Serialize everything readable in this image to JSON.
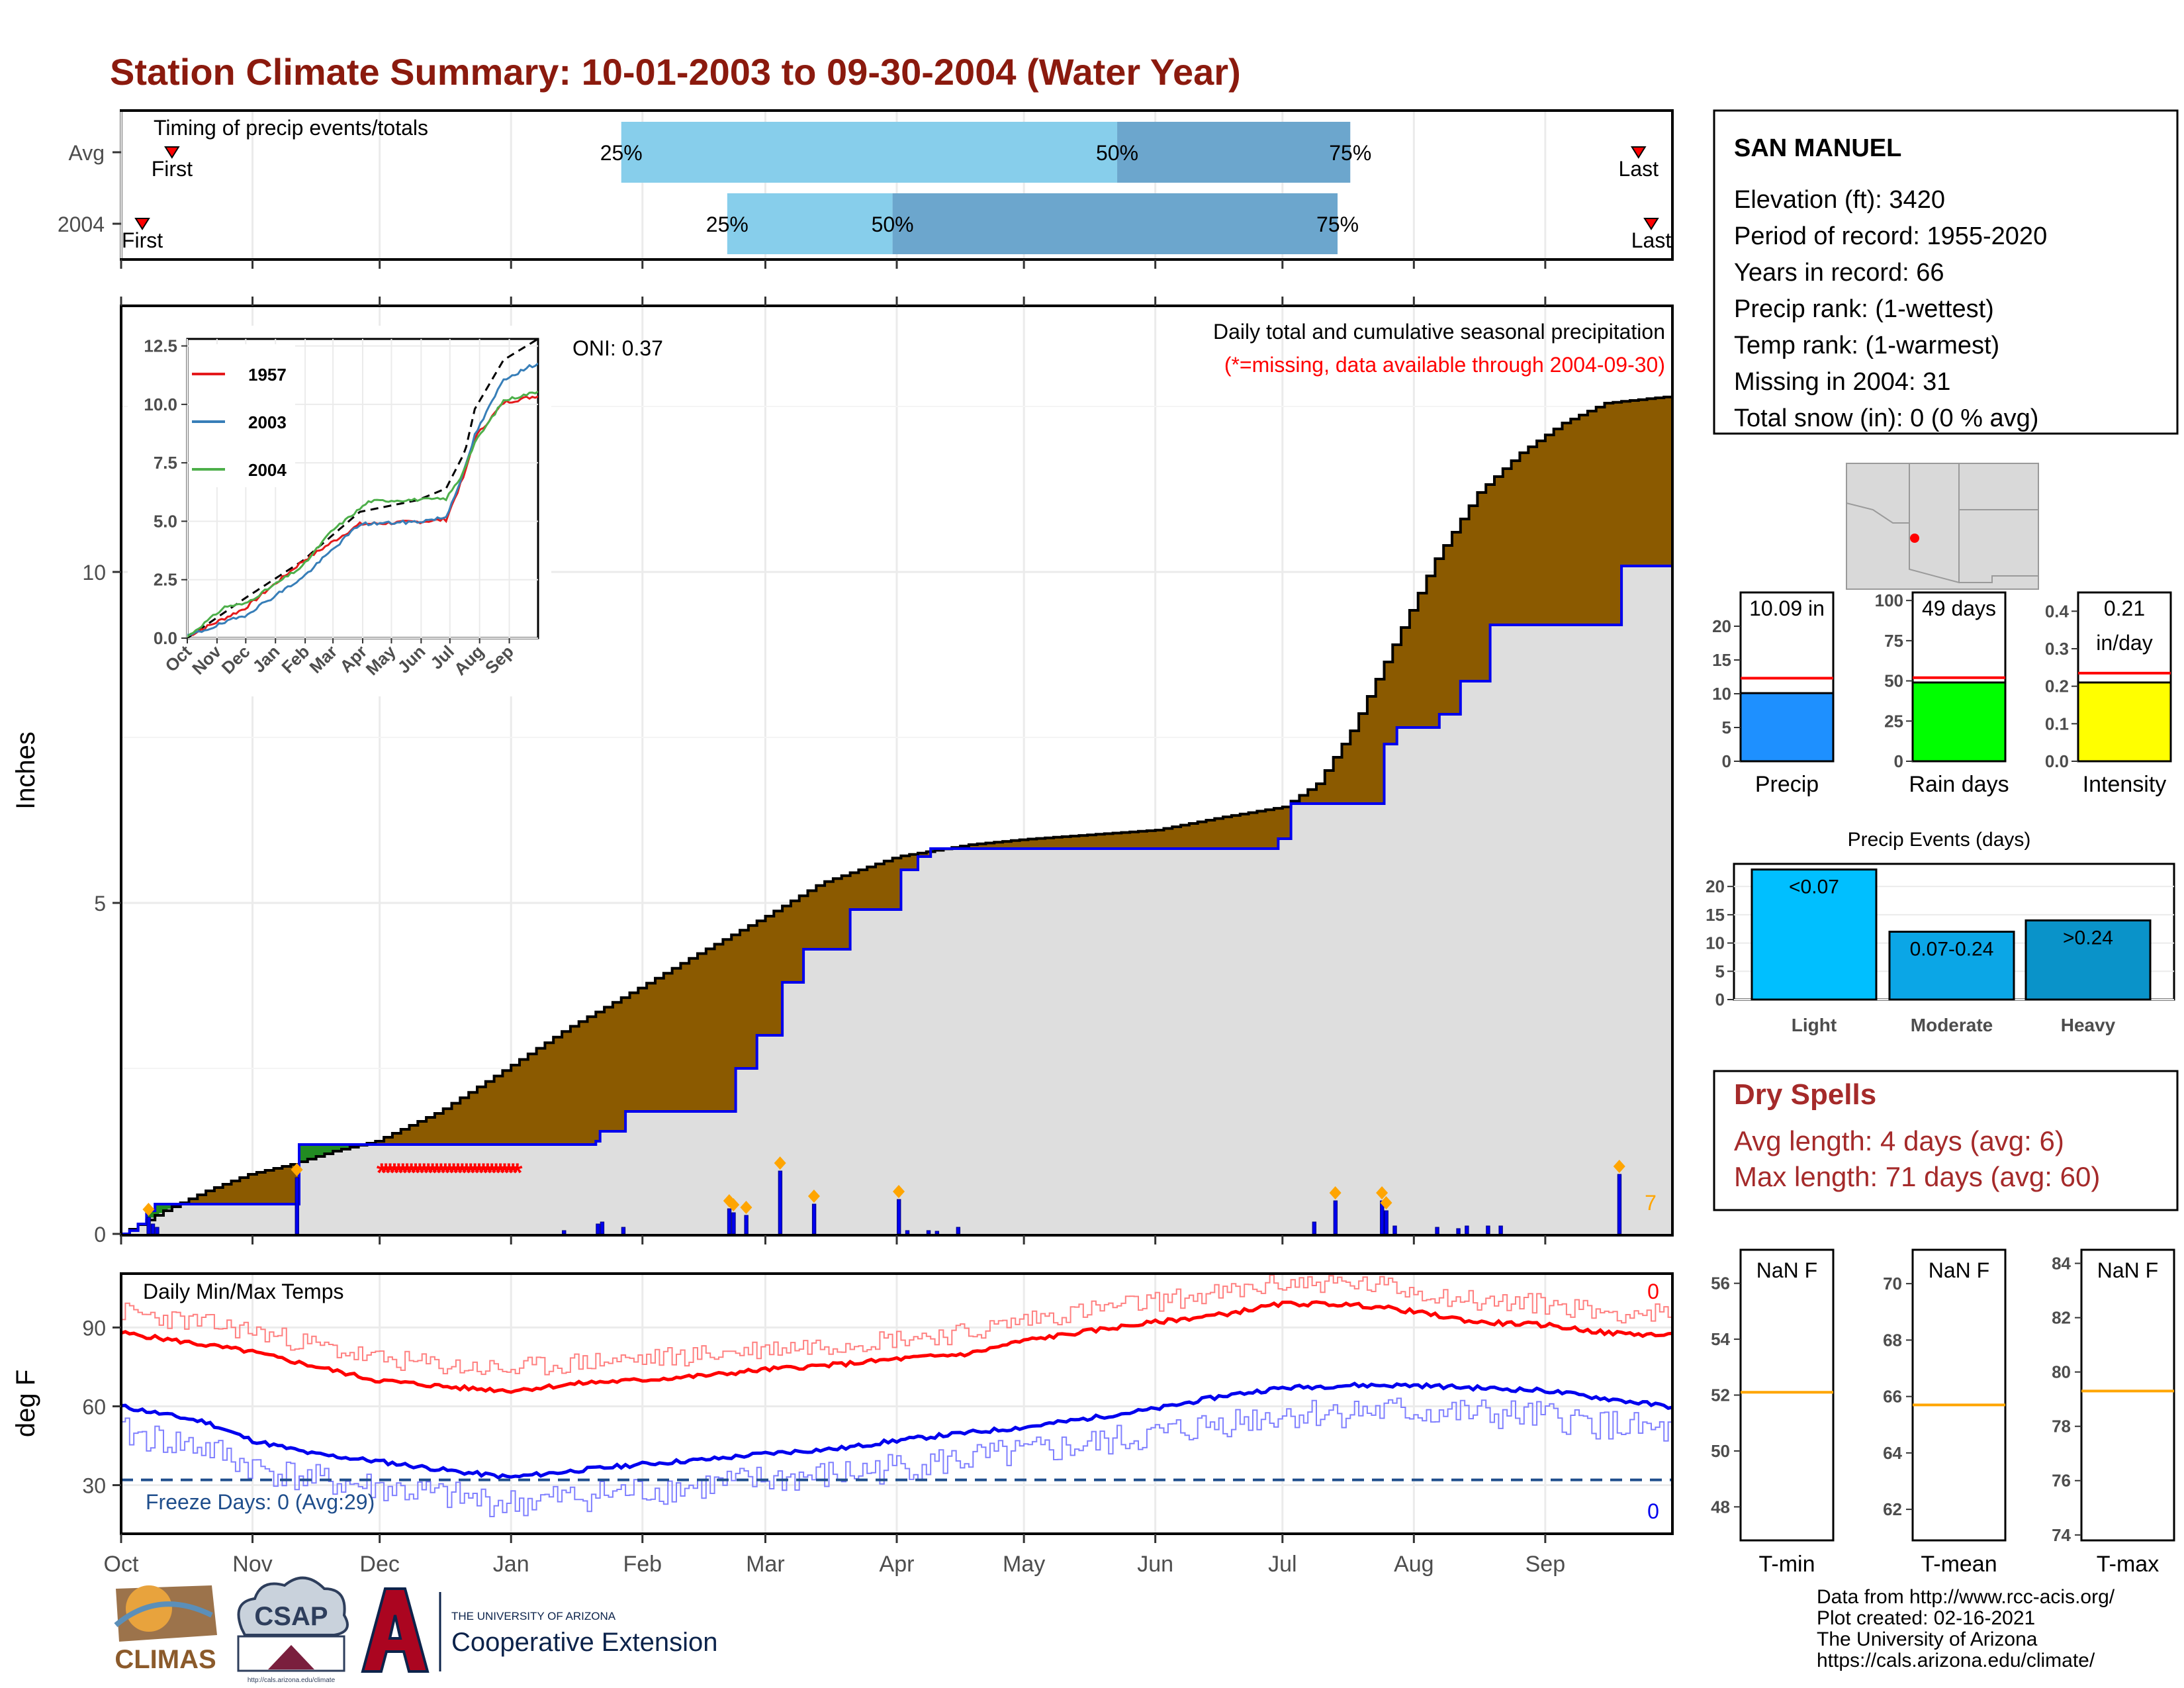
{
  "page": {
    "title": "Station Climate Summary: 10-01-2003 to 09-30-2004 (Water Year)",
    "title_color": "#8B1A0E"
  },
  "timing_panel": {
    "title": "Timing of precip events/totals",
    "rows": [
      {
        "label": "Avg",
        "first_label": "First",
        "last_label": "Last",
        "first_doy": 12,
        "last_doy": 358,
        "p25_doy": 118,
        "p50_doy": 235,
        "p75_doy": 290,
        "p25_label": "25%",
        "p50_label": "50%",
        "p75_label": "75%"
      },
      {
        "label": "2004",
        "first_label": "First",
        "last_label": "Last",
        "first_doy": 5,
        "last_doy": 361,
        "p25_doy": 143,
        "p50_doy": 182,
        "p75_doy": 287,
        "p25_label": "25%",
        "p50_label": "50%",
        "p75_label": "75%"
      }
    ]
  },
  "month_axis": {
    "labels": [
      "Oct",
      "Nov",
      "Dec",
      "Jan",
      "Feb",
      "Mar",
      "Apr",
      "May",
      "Jun",
      "Jul",
      "Aug",
      "Sep"
    ],
    "month_start_doy": [
      0,
      31,
      61,
      92,
      123,
      152,
      183,
      213,
      244,
      274,
      305,
      336
    ],
    "total_days": 366
  },
  "precip_panel": {
    "ylabel": "Inches",
    "y_ticks": [
      "0",
      "5",
      "10"
    ],
    "ylim": [
      0,
      14
    ],
    "subtitle": "Daily total and cumulative seasonal precipitation",
    "missing_note": "(*=missing, data available through 2004-09-30)",
    "oni_label": "ONI: 0.37",
    "big_event_count": "7",
    "colors": {
      "avg_fill": "#8B5A00",
      "above_fill": "#228B22",
      "year_line": "#0000EE",
      "year_fill": "#DEDEDE",
      "missing": "#FF0000",
      "marker": "#FFA500"
    }
  },
  "inset": {
    "y_ticks": [
      "0.0",
      "2.5",
      "5.0",
      "7.5",
      "10.0",
      "12.5"
    ],
    "ylim": [
      0,
      12.8
    ],
    "x_labels": [
      "Oct",
      "Nov",
      "Dec",
      "Jan",
      "Feb",
      "Mar",
      "Apr",
      "May",
      "Jun",
      "Jul",
      "Aug",
      "Sep"
    ],
    "legend": [
      {
        "name": "1957",
        "color": "#E41A1C"
      },
      {
        "name": "2003",
        "color": "#377EB8"
      },
      {
        "name": "2004",
        "color": "#4DAF4A"
      }
    ]
  },
  "temp_panel": {
    "ylabel": "deg F",
    "title": "Daily Min/Max Temps",
    "y_ticks": [
      "30",
      "60",
      "90"
    ],
    "ylim": [
      12,
      110
    ],
    "freeze_label": "Freeze Days: 0 (Avg:29)",
    "freeze_line": 32,
    "hot_count": "0",
    "cold_count": "0"
  },
  "station": {
    "name": "SAN MANUEL",
    "lines": [
      "Elevation (ft): 3420",
      "Period of record: 1955-2020",
      "Years in record: 66",
      "Precip rank:  (1-wettest)",
      "Temp rank:  (1-warmest)",
      "Missing in 2004: 31",
      "Total snow (in): 0 (0 % avg)"
    ]
  },
  "summary_bars": [
    {
      "label": "Precip",
      "value_text": "10.09 in",
      "value": 10.09,
      "avg": 12.3,
      "ymax": 25,
      "ticks": [
        "0",
        "5",
        "10",
        "15",
        "20"
      ],
      "tick_vals": [
        0,
        5,
        10,
        15,
        20
      ],
      "color": "#1E90FF"
    },
    {
      "label": "Rain days",
      "value_text": "49 days",
      "value": 49,
      "avg": 52,
      "ymax": 105,
      "ticks": [
        "0",
        "25",
        "50",
        "75",
        "100"
      ],
      "tick_vals": [
        0,
        25,
        50,
        75,
        100
      ],
      "color": "#00FF00"
    },
    {
      "label": "Intensity",
      "value_text": "0.21\nin/day",
      "value": 0.21,
      "avg": 0.235,
      "ymax": 0.45,
      "ticks": [
        "0.0",
        "0.1",
        "0.2",
        "0.3",
        "0.4"
      ],
      "tick_vals": [
        0,
        0.1,
        0.2,
        0.3,
        0.4
      ],
      "color": "#FFFF00"
    }
  ],
  "precip_events": {
    "title": "Precip Events (days)",
    "ticks": [
      "0",
      "5",
      "10",
      "15",
      "20"
    ],
    "ymax": 24,
    "bars": [
      {
        "label": "Light",
        "value_text": "<0.07",
        "value": 23,
        "color": "#00BFFF"
      },
      {
        "label": "Moderate",
        "value_text": "0.07-0.24",
        "value": 12,
        "color": "#0BA6E6"
      },
      {
        "label": "Heavy",
        "value_text": ">0.24",
        "value": 14,
        "color": "#0A93C9"
      }
    ]
  },
  "dry_spells": {
    "title": "Dry Spells",
    "avg_length": "Avg length: 4 days (avg: 6)",
    "max_length": "Max length: 71 days (avg: 60)",
    "color": "#A52A2A"
  },
  "temp_boxes": [
    {
      "label": "T-min",
      "value_text": "NaN F",
      "ticks": [
        "48",
        "50",
        "52",
        "54",
        "56"
      ],
      "tick_vals": [
        48,
        50,
        52,
        54,
        56
      ],
      "ylim": [
        46.8,
        57.2
      ],
      "avg": 52.1
    },
    {
      "label": "T-mean",
      "value_text": "NaN F",
      "ticks": [
        "62",
        "64",
        "66",
        "68",
        "70"
      ],
      "tick_vals": [
        62,
        64,
        66,
        68,
        70
      ],
      "ylim": [
        60.9,
        71.2
      ],
      "avg": 65.7
    },
    {
      "label": "T-max",
      "value_text": "NaN F",
      "ticks": [
        "74",
        "76",
        "78",
        "80",
        "82",
        "84"
      ],
      "tick_vals": [
        74,
        76,
        78,
        80,
        82,
        84
      ],
      "ylim": [
        73.8,
        84.5
      ],
      "avg": 79.3
    }
  ],
  "footer": {
    "lines": [
      "Data from http://www.rcc-acis.org/",
      "Plot created: 02-16-2021",
      "The University of Arizona",
      "https://cals.arizona.edu/climate/"
    ],
    "climas_label": "CLIMAS",
    "csap_label": "CSAP",
    "csap_url": "http://cals.arizona.edu/climate",
    "ua_small": "THE UNIVERSITY OF ARIZONA",
    "ua_big": "Cooperative Extension"
  },
  "chart_data": {
    "type": "area",
    "title": "Station Climate Summary: 10-01-2003 to 09-30-2004 (Water Year)",
    "xlabel": "",
    "ylabel": "Inches",
    "x_units": "day of water year (0 = Oct 1)",
    "ylim": [
      0,
      14
    ],
    "series": [
      {
        "name": "avg_cumulative",
        "x": [
          0,
          10,
          20,
          30,
          40,
          50,
          60,
          75,
          92,
          105,
          123,
          135,
          152,
          165,
          183,
          200,
          213,
          244,
          260,
          274,
          282,
          290,
          300,
          310,
          320,
          330,
          340,
          350,
          365
        ],
        "values": [
          0,
          0.35,
          0.65,
          0.9,
          1.05,
          1.25,
          1.4,
          1.85,
          2.55,
          3.1,
          3.75,
          4.2,
          4.8,
          5.3,
          5.7,
          5.88,
          5.96,
          6.1,
          6.3,
          6.45,
          6.8,
          7.6,
          8.9,
          10.2,
          11.2,
          11.8,
          12.25,
          12.55,
          12.65
        ]
      },
      {
        "name": "2004_cumulative",
        "x": [
          0,
          2,
          4,
          6,
          8,
          30,
          41,
          42,
          62,
          104,
          112,
          113,
          118,
          119,
          144,
          145,
          149,
          150,
          155,
          156,
          160,
          161,
          171,
          172,
          183,
          184,
          187,
          188,
          190,
          191,
          272,
          273,
          275,
          276,
          297,
          298,
          300,
          301,
          310,
          311,
          315,
          316,
          322,
          323,
          353,
          354,
          365
        ],
        "values": [
          0,
          0.05,
          0.15,
          0.35,
          0.45,
          0.45,
          0.45,
          1.35,
          1.35,
          1.35,
          1.4,
          1.55,
          1.55,
          1.85,
          1.85,
          2.5,
          2.5,
          3.0,
          3.0,
          3.8,
          3.8,
          4.3,
          4.3,
          4.9,
          4.9,
          5.5,
          5.5,
          5.7,
          5.7,
          5.82,
          5.82,
          5.97,
          5.97,
          6.5,
          6.5,
          7.4,
          7.4,
          7.65,
          7.65,
          7.85,
          7.85,
          8.35,
          8.35,
          9.2,
          9.2,
          10.09,
          10.09
        ]
      },
      {
        "name": "daily_precip",
        "x": [
          6,
          7,
          8,
          41,
          104,
          112,
          113,
          118,
          143,
          144,
          147,
          155,
          163,
          183,
          185,
          190,
          192,
          197,
          281,
          286,
          297,
          298,
          300,
          310,
          315,
          317,
          322,
          325,
          353
        ],
        "values": [
          0.25,
          0.15,
          0.1,
          0.85,
          0.05,
          0.15,
          0.18,
          0.1,
          0.38,
          0.32,
          0.28,
          0.95,
          0.45,
          0.52,
          0.05,
          0.05,
          0.04,
          0.1,
          0.18,
          0.5,
          0.5,
          0.35,
          0.12,
          0.1,
          0.08,
          0.12,
          0.12,
          0.12,
          0.9
        ]
      },
      {
        "name": "missing_days",
        "x": [
          61,
          93
        ],
        "values": [
          1,
          1
        ]
      },
      {
        "name": "tmax_avg",
        "x": [
          0,
          30,
          60,
          80,
          92,
          110,
          123,
          140,
          152,
          170,
          183,
          200,
          213,
          230,
          244,
          260,
          274,
          285,
          296,
          305,
          320,
          336,
          350,
          365
        ],
        "values": [
          88,
          81,
          70,
          67,
          66,
          69,
          70,
          72,
          74,
          76,
          78,
          80,
          85,
          89,
          92,
          95,
          99,
          99,
          98,
          96,
          92,
          91,
          88,
          87
        ]
      },
      {
        "name": "tmin_avg",
        "x": [
          0,
          20,
          31,
          45,
          61,
          80,
          92,
          110,
          123,
          140,
          152,
          170,
          183,
          200,
          213,
          244,
          260,
          274,
          290,
          305,
          320,
          336,
          350,
          365
        ],
        "values": [
          60,
          54,
          47,
          42,
          39,
          35,
          33,
          36,
          38,
          40,
          42,
          44,
          47,
          50,
          52,
          59,
          64,
          67,
          68,
          68,
          67,
          66,
          63,
          60
        ]
      }
    ]
  }
}
